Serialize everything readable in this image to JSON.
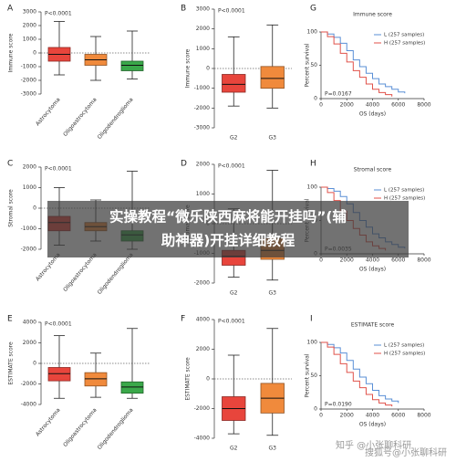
{
  "chart_data": [
    {
      "type": "box",
      "panel": "A",
      "ylabel": "Immune score",
      "pvalue": "P<0.0001",
      "rotate_labels": true,
      "categories": [
        "Astrocytoma",
        "Oligoastrocytoma",
        "Oligodendroglioma"
      ],
      "boxes": [
        {
          "min": -1600,
          "q1": -600,
          "median": -100,
          "q3": 400,
          "max": 2300,
          "color": "#e8453c"
        },
        {
          "min": -2000,
          "q1": -900,
          "median": -500,
          "q3": -100,
          "max": 1200,
          "color": "#f08a3c"
        },
        {
          "min": -1900,
          "q1": -1300,
          "median": -900,
          "q3": -600,
          "max": 1600,
          "color": "#3aa84a"
        }
      ],
      "ylim": [
        -3000,
        3000
      ],
      "yticks": [
        -3000,
        -2000,
        -1000,
        0,
        1000,
        2000,
        3000
      ],
      "hline": 0
    },
    {
      "type": "box",
      "panel": "B",
      "ylabel": "Immune score",
      "pvalue": "P<0.0001",
      "rotate_labels": false,
      "categories": [
        "G2",
        "G3"
      ],
      "boxes": [
        {
          "min": -1900,
          "q1": -1200,
          "median": -800,
          "q3": -300,
          "max": 1600,
          "color": "#e8453c"
        },
        {
          "min": -2000,
          "q1": -1000,
          "median": -500,
          "q3": 100,
          "max": 2200,
          "color": "#f08a3c"
        }
      ],
      "ylim": [
        -3000,
        3000
      ],
      "yticks": [
        -3000,
        -2000,
        -1000,
        0,
        1000,
        2000,
        3000
      ],
      "hline": 0
    },
    {
      "type": "survival",
      "panel": "G",
      "title": "Immune score",
      "ylabel": "Percent survival",
      "xlabel": "OS (days)",
      "pvalue": "P=0.0167",
      "x": [
        0,
        500,
        1000,
        1500,
        2000,
        2500,
        3000,
        3500,
        4000,
        4500,
        5000,
        5500,
        6000,
        6500
      ],
      "series": [
        {
          "name": "L (257 samples)",
          "color": "#5a8fd6",
          "values": [
            100,
            97,
            92,
            83,
            72,
            58,
            48,
            38,
            30,
            22,
            18,
            14,
            10,
            8
          ]
        },
        {
          "name": "H (257 samples)",
          "color": "#e0524a",
          "values": [
            100,
            93,
            82,
            68,
            55,
            42,
            32,
            22,
            14,
            9,
            6,
            3,
            null,
            null
          ]
        }
      ],
      "xlim": [
        0,
        8000
      ],
      "xticks": [
        0,
        2000,
        4000,
        6000,
        8000
      ],
      "ylim": [
        0,
        100
      ],
      "yticks": [
        0,
        50,
        100
      ]
    },
    {
      "type": "box",
      "panel": "C",
      "ylabel": "Stromal score",
      "pvalue": "P<0.0001",
      "rotate_labels": true,
      "categories": [
        "Astrocytoma",
        "Oligoastrocytoma",
        "Oligodendroglioma"
      ],
      "boxes": [
        {
          "min": -1800,
          "q1": -1100,
          "median": -700,
          "q3": -400,
          "max": 1000,
          "color": "#e8453c"
        },
        {
          "min": -1600,
          "q1": -1100,
          "median": -900,
          "q3": -700,
          "max": 400,
          "color": "#f08a3c"
        },
        {
          "min": -2000,
          "q1": -1600,
          "median": -1300,
          "q3": -1100,
          "max": 1800,
          "color": "#3aa84a"
        }
      ],
      "ylim": [
        -2000,
        2000
      ],
      "yticks": [
        -2000,
        -1000,
        0,
        1000,
        2000
      ],
      "hline": 0
    },
    {
      "type": "box",
      "panel": "D",
      "ylabel": "Stromal score",
      "pvalue": "P<0.0001",
      "rotate_labels": false,
      "categories": [
        "G2",
        "G3"
      ],
      "boxes": [
        {
          "min": -1800,
          "q1": -1400,
          "median": -1100,
          "q3": -900,
          "max": 500,
          "color": "#e8453c"
        },
        {
          "min": -1900,
          "q1": -1200,
          "median": -900,
          "q3": -500,
          "max": 1800,
          "color": "#f08a3c"
        }
      ],
      "ylim": [
        -2000,
        2000
      ],
      "yticks": [
        -2000,
        -1000,
        0,
        1000,
        2000
      ],
      "hline": 0
    },
    {
      "type": "survival",
      "panel": "H",
      "title": "Stromal score",
      "ylabel": "Percent survival",
      "xlabel": "OS (days)",
      "pvalue": "P=0.0035",
      "x": [
        0,
        500,
        1000,
        1500,
        2000,
        2500,
        3000,
        3500,
        4000,
        4500,
        5000,
        5500,
        6000,
        6500
      ],
      "series": [
        {
          "name": "L (257 samples)",
          "color": "#5a8fd6",
          "values": [
            100,
            98,
            94,
            86,
            75,
            62,
            50,
            40,
            30,
            24,
            18,
            14,
            10,
            8
          ]
        },
        {
          "name": "H (257 samples)",
          "color": "#e0524a",
          "values": [
            100,
            92,
            80,
            64,
            50,
            38,
            28,
            18,
            12,
            8,
            5,
            null,
            null,
            null
          ]
        }
      ],
      "xlim": [
        0,
        8000
      ],
      "xticks": [
        0,
        2000,
        4000,
        6000,
        8000
      ],
      "ylim": [
        0,
        100
      ],
      "yticks": [
        0,
        50,
        100
      ]
    },
    {
      "type": "box",
      "panel": "E",
      "ylabel": "ESTIMATE score",
      "pvalue": "P<0.0001",
      "rotate_labels": true,
      "categories": [
        "Astrocytoma",
        "Oligoastrocytoma",
        "Oligodendroglioma"
      ],
      "boxes": [
        {
          "min": -3400,
          "q1": -1700,
          "median": -1000,
          "q3": -400,
          "max": 2700,
          "color": "#e8453c"
        },
        {
          "min": -3300,
          "q1": -2200,
          "median": -1500,
          "q3": -900,
          "max": 1000,
          "color": "#f08a3c"
        },
        {
          "min": -3400,
          "q1": -2900,
          "median": -2300,
          "q3": -1800,
          "max": 3400,
          "color": "#3aa84a"
        }
      ],
      "ylim": [
        -4000,
        4000
      ],
      "yticks": [
        -4000,
        -2000,
        0,
        2000,
        4000
      ],
      "hline": 0
    },
    {
      "type": "box",
      "panel": "F",
      "ylabel": "ESTIMATE score",
      "pvalue": "P<0.0001",
      "rotate_labels": false,
      "categories": [
        "G2",
        "G3"
      ],
      "boxes": [
        {
          "min": -3700,
          "q1": -2800,
          "median": -2000,
          "q3": -1200,
          "max": 1600,
          "color": "#e8453c"
        },
        {
          "min": -3800,
          "q1": -2300,
          "median": -1300,
          "q3": -300,
          "max": 3400,
          "color": "#f08a3c"
        }
      ],
      "ylim": [
        -4000,
        4000
      ],
      "yticks": [
        -4000,
        -2000,
        0,
        2000,
        4000
      ],
      "hline": 0
    },
    {
      "type": "survival",
      "panel": "I",
      "title": "ESTIMATE score",
      "ylabel": "Percent survival",
      "xlabel": "OS (days)",
      "pvalue": "P=0.0190",
      "x": [
        0,
        500,
        1000,
        1500,
        2000,
        2500,
        3000,
        3500,
        4000,
        4500,
        5000,
        5500,
        6000,
        6500
      ],
      "series": [
        {
          "name": "L (257 samples)",
          "color": "#5a8fd6",
          "values": [
            100,
            97,
            92,
            84,
            73,
            60,
            48,
            38,
            28,
            20,
            15,
            12,
            9,
            null
          ]
        },
        {
          "name": "H (257 samples)",
          "color": "#e0524a",
          "values": [
            100,
            93,
            82,
            68,
            55,
            42,
            32,
            22,
            14,
            9,
            6,
            4,
            null,
            null
          ]
        }
      ],
      "xlim": [
        0,
        8000
      ],
      "xticks": [
        0,
        2000,
        4000,
        6000,
        8000
      ],
      "ylim": [
        0,
        100
      ],
      "yticks": [
        0,
        50,
        100
      ]
    }
  ],
  "overlay": {
    "lines": [
      "实操教程“微乐陕西麻将能开挂吗”(辅",
      "助神器)开挂详细教程"
    ]
  },
  "watermark": {
    "zhihu": "知乎 @小张聊科研",
    "sohu": "搜狐号@小张聊科研"
  }
}
